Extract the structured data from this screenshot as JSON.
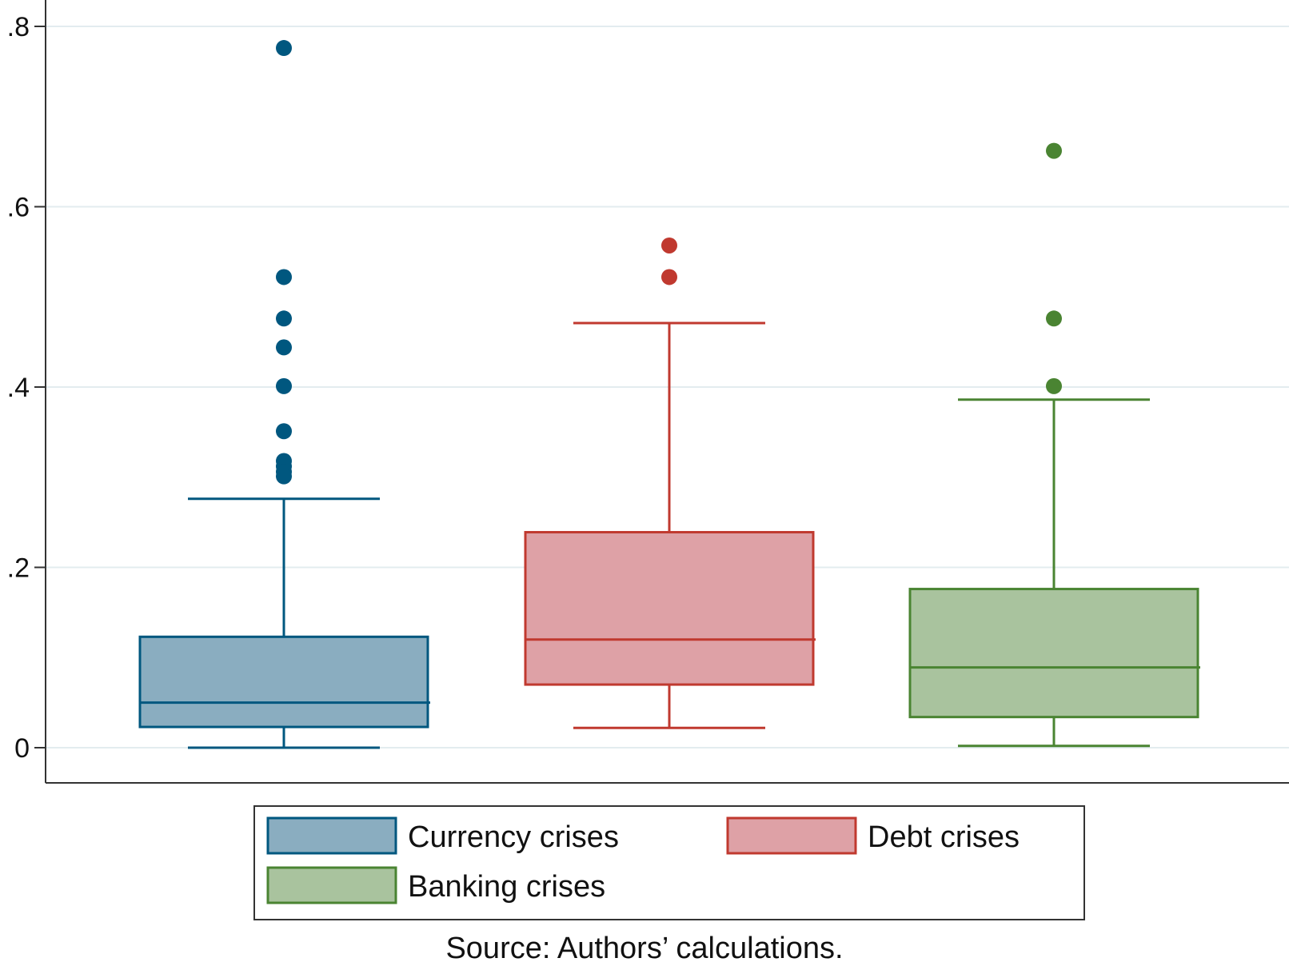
{
  "chart_data": {
    "type": "box",
    "title": "",
    "xlabel": "",
    "ylabel": "",
    "ylim": [
      -0.02,
      0.83
    ],
    "yticks": [
      0,
      0.2,
      0.4,
      0.6,
      0.8
    ],
    "ytick_labels": [
      "0",
      ".2",
      ".4",
      ".6",
      ".8"
    ],
    "grid": true,
    "legend_position": "bottom",
    "series": [
      {
        "name": "Currency crises",
        "color": "#00577f",
        "fill": "#8aadc0",
        "whisker_low": 0.0,
        "q1": 0.023,
        "median": 0.05,
        "q3": 0.123,
        "whisker_high": 0.276,
        "outliers": [
          0.776,
          0.522,
          0.476,
          0.444,
          0.401,
          0.351,
          0.318,
          0.312,
          0.306,
          0.301
        ]
      },
      {
        "name": "Debt crises",
        "color": "#c0392f",
        "fill": "#dea1a6",
        "whisker_low": 0.022,
        "q1": 0.07,
        "median": 0.12,
        "q3": 0.239,
        "whisker_high": 0.471,
        "outliers": [
          0.557,
          0.522
        ]
      },
      {
        "name": "Banking crises",
        "color": "#4a8432",
        "fill": "#a9c39e",
        "whisker_low": 0.002,
        "q1": 0.034,
        "median": 0.089,
        "q3": 0.176,
        "whisker_high": 0.386,
        "outliers": [
          0.662,
          0.476,
          0.401
        ]
      }
    ]
  },
  "source_note": "Source: Authors’ calculations."
}
